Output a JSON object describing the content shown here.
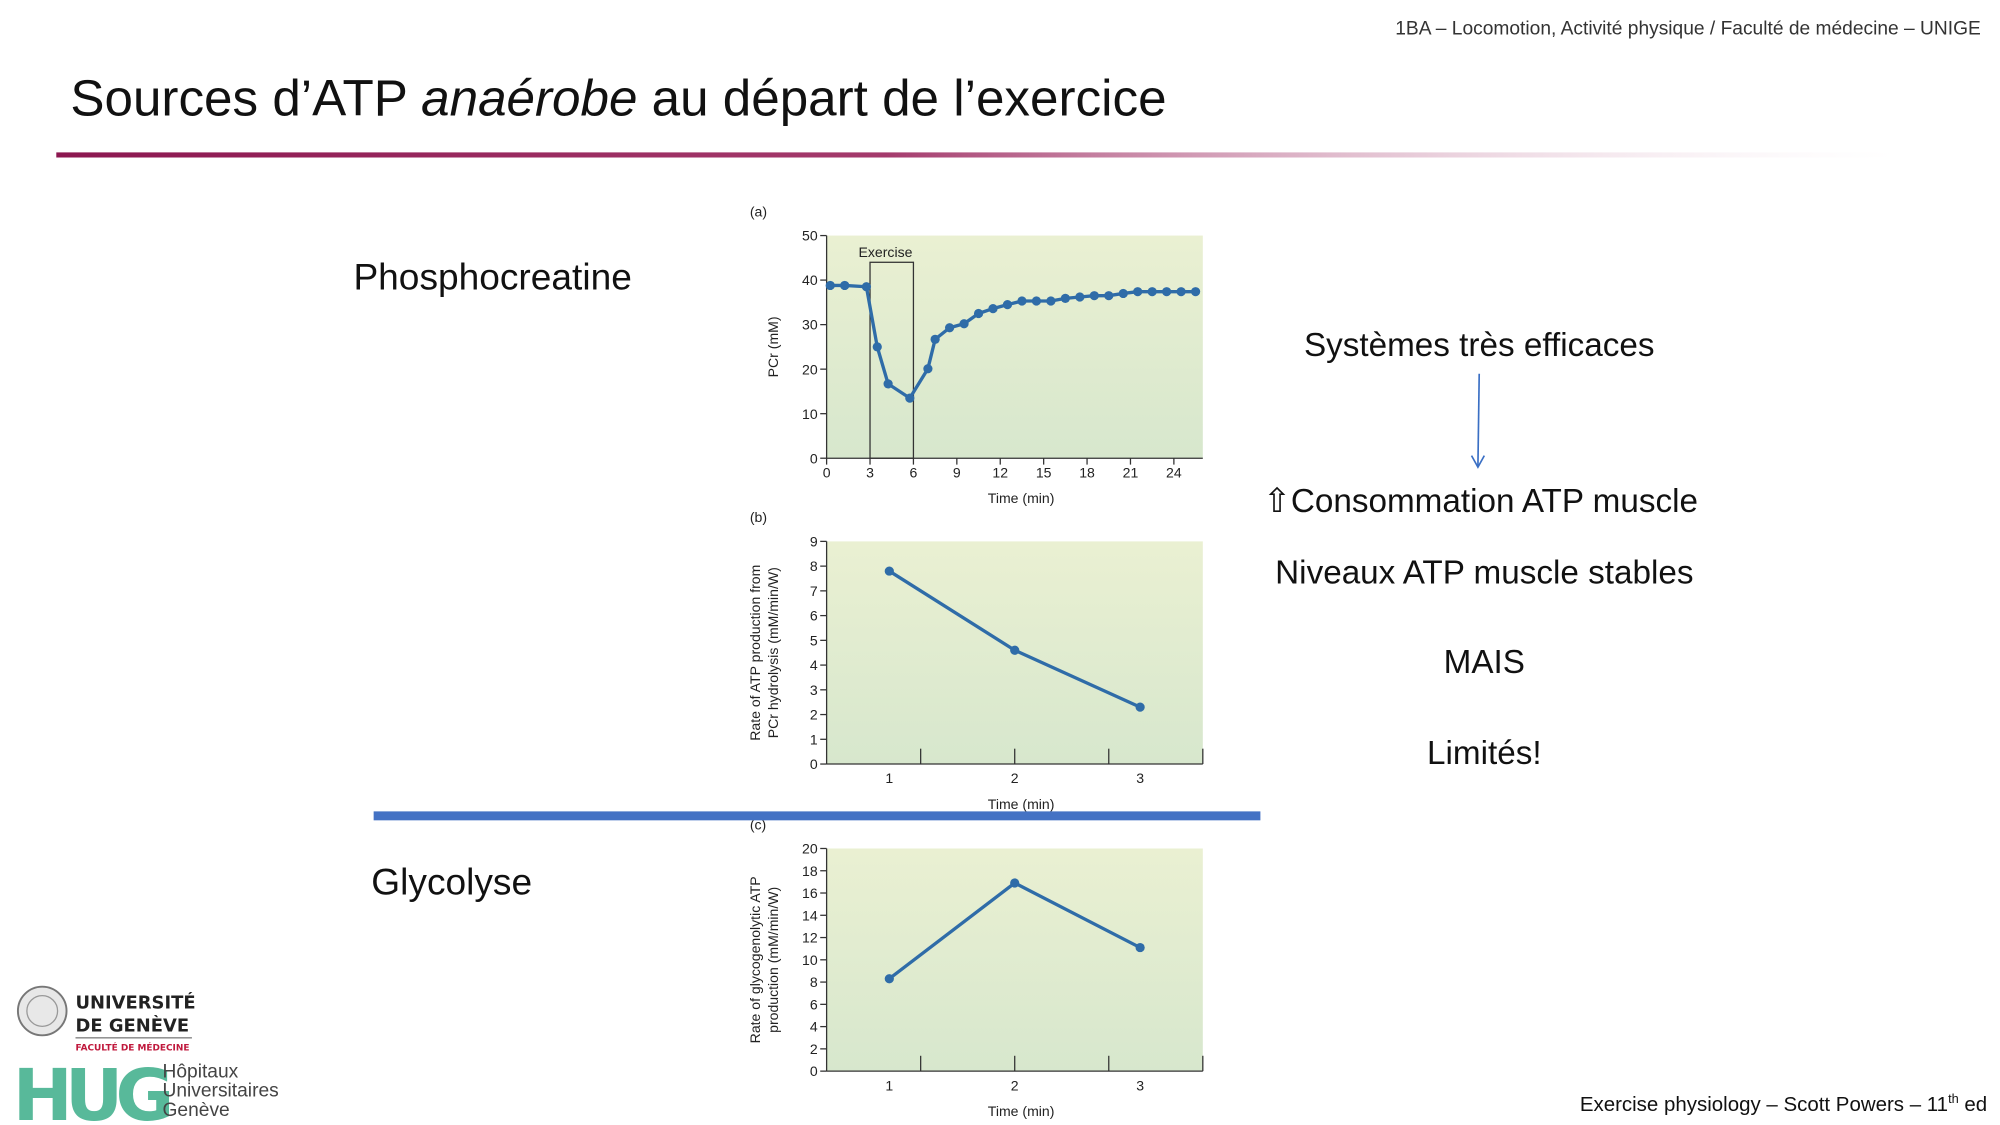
{
  "header": "1BA – Locomotion, Activité physique / Faculté de médecine – UNIGE",
  "title_parts": [
    "Sources d’ATP ",
    "anaérobe",
    " au départ de l’exercice"
  ],
  "sections": [
    "Phosphocreatine",
    "Glycolyse"
  ],
  "notes": [
    "Systèmes très efficaces",
    "⇧Consommation ATP muscle",
    "Niveaux ATP muscle stables",
    "MAIS",
    "Limités!"
  ],
  "footer_parts": [
    "Exercise physiology – Scott Powers – 11",
    "th",
    " ed"
  ],
  "logos": {
    "unige": [
      "UNIVERSITÉ",
      "DE GENÈVE",
      "FACULTÉ DE MÉDECINE"
    ],
    "hug": [
      "HUG",
      "Hôpitaux",
      "Universitaires",
      "Genève"
    ]
  },
  "chart_data": [
    {
      "type": "line",
      "panel_label": "(a)",
      "xlabel": "Time (min)",
      "ylabel": [
        "PCr (mM)"
      ],
      "x": [
        0.25,
        1.25,
        2.75,
        3.5,
        4.25,
        5.75,
        7,
        7.5,
        8.5,
        9.5,
        10.5,
        11.5,
        12.5,
        13.5,
        14.5,
        15.5,
        16.5,
        17.5,
        18.5,
        19.5,
        20.5,
        21.5,
        22.5,
        23.5,
        24.5,
        25.5
      ],
      "series": [
        {
          "color": "#2f6ca8",
          "values": [
            38.8,
            38.8,
            38.5,
            25,
            16.7,
            13.5,
            20.1,
            26.7,
            29.3,
            30.2,
            32.5,
            33.6,
            34.5,
            35.3,
            35.3,
            35.3,
            35.9,
            36.2,
            36.5,
            36.5,
            37,
            37.4,
            37.4,
            37.4,
            37.4,
            37.4
          ]
        }
      ],
      "xlim": [
        0,
        26
      ],
      "ylim": [
        0,
        50
      ],
      "xticks": [
        0,
        3,
        6,
        9,
        12,
        15,
        18,
        21,
        24
      ],
      "yticks": [
        0,
        10,
        20,
        30,
        40,
        50
      ],
      "exercise_box": {
        "label": "Exercise",
        "x": [
          3,
          6
        ],
        "top": 44
      }
    },
    {
      "type": "line",
      "panel_label": "(b)",
      "xlabel": "Time (min)",
      "ylabel": [
        "Rate of ATP production from",
        "PCr hydrolysis (mM/min/W)"
      ],
      "x": [
        1,
        2,
        3
      ],
      "series": [
        {
          "color": "#2f6ca8",
          "values": [
            7.8,
            4.6,
            2.3
          ]
        }
      ],
      "xlim": [
        0.5,
        3.5
      ],
      "ylim": [
        0,
        9
      ],
      "xticks": [
        1,
        2,
        3
      ],
      "yticks": [
        0,
        1,
        2,
        3,
        4,
        5,
        6,
        7,
        8,
        9
      ]
    },
    {
      "type": "line",
      "panel_label": "(c)",
      "xlabel": "Time (min)",
      "ylabel": [
        "Rate of glycogenolytic ATP",
        "production (mM/min/W)"
      ],
      "x": [
        1,
        2,
        3
      ],
      "series": [
        {
          "color": "#2f6ca8",
          "values": [
            8.3,
            16.9,
            11.1
          ]
        }
      ],
      "xlim": [
        0.5,
        3.5
      ],
      "ylim": [
        0,
        20
      ],
      "xticks": [
        1,
        2,
        3
      ],
      "yticks": [
        0,
        2,
        4,
        6,
        8,
        10,
        12,
        14,
        16,
        18,
        20
      ]
    }
  ]
}
